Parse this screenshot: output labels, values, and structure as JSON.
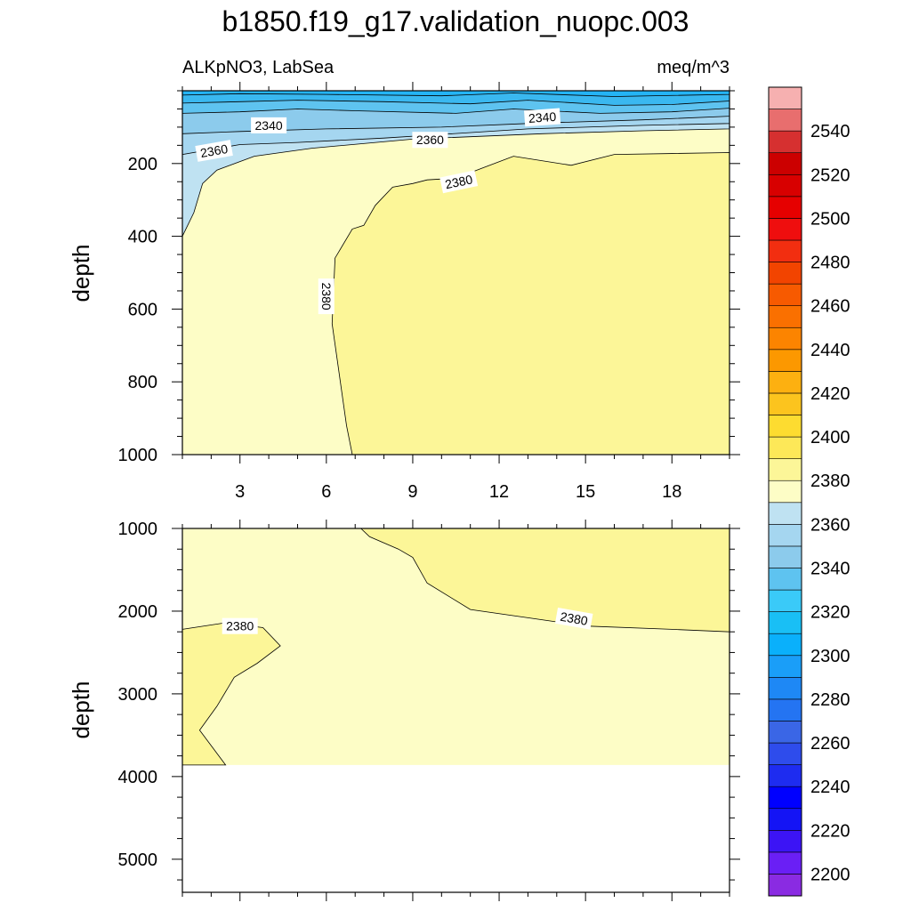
{
  "title": "b1850.f19_g17.validation_nuopc.003",
  "colors": {
    "background": "#ffffff",
    "contour_line": "#000000"
  },
  "chart_data": [
    {
      "type": "contour",
      "panel": "upper",
      "variable": "ALKpNO3, LabSea",
      "units": "meq/m^3",
      "xlabel": "",
      "ylabel": "depth",
      "xlim": [
        1,
        20
      ],
      "ylim": [
        1000,
        0
      ],
      "y_inverted": true,
      "x_ticks": [
        "3",
        "6",
        "9",
        "12",
        "15",
        "18"
      ],
      "y_ticks": [
        "200",
        "400",
        "600",
        "800",
        "1000"
      ],
      "grid": false,
      "regions": [
        {
          "level_min": 2370,
          "level_max": 2380,
          "color": "#fdfdc6",
          "outline": [
            [
              1,
              0
            ],
            [
              20,
              0
            ],
            [
              20,
              1000
            ],
            [
              1,
              1000
            ]
          ]
        },
        {
          "level_min": 2380,
          "level_max": 2390,
          "color": "#fcf698",
          "outline": [
            [
              20,
              170
            ],
            [
              16,
              175
            ],
            [
              14.5,
              205
            ],
            [
              12.5,
              180
            ],
            [
              11.5,
              210
            ],
            [
              10.5,
              240
            ],
            [
              9.5,
              245
            ],
            [
              9,
              255
            ],
            [
              8.3,
              265
            ],
            [
              7.7,
              315
            ],
            [
              7.3,
              370
            ],
            [
              6.9,
              380
            ],
            [
              6.3,
              460
            ],
            [
              6.2,
              640
            ],
            [
              6.7,
              920
            ],
            [
              6.9,
              1000
            ],
            [
              20,
              1000
            ]
          ]
        },
        {
          "level_min": 2360,
          "level_max": 2370,
          "color": "#bfe2f2",
          "outline": [
            [
              1,
              0
            ],
            [
              20,
              0
            ],
            [
              20,
              105
            ],
            [
              17,
              110
            ],
            [
              13.5,
              118
            ],
            [
              9,
              133
            ],
            [
              5.5,
              158
            ],
            [
              3.5,
              180
            ],
            [
              2.2,
              218
            ],
            [
              1.7,
              255
            ],
            [
              1.4,
              335
            ],
            [
              1,
              400
            ]
          ]
        },
        {
          "level_min": 2350,
          "level_max": 2360,
          "color": "#a5d6f0",
          "outline": [
            [
              1,
              0
            ],
            [
              20,
              0
            ],
            [
              20,
              90
            ],
            [
              17,
              95
            ],
            [
              13,
              105
            ],
            [
              10,
              120
            ],
            [
              8,
              130
            ],
            [
              5,
              142
            ],
            [
              3,
              148
            ],
            [
              1,
              175
            ]
          ]
        },
        {
          "level_min": 2340,
          "level_max": 2350,
          "color": "#8ccbec",
          "outline": [
            [
              1,
              0
            ],
            [
              20,
              0
            ],
            [
              20,
              70
            ],
            [
              17,
              80
            ],
            [
              13,
              90
            ],
            [
              10,
              100
            ],
            [
              6,
              105
            ],
            [
              3,
              112
            ],
            [
              1,
              118
            ]
          ]
        },
        {
          "level_min": 2330,
          "level_max": 2340,
          "color": "#5ec3f0",
          "outline": [
            [
              1,
              0
            ],
            [
              20,
              0
            ],
            [
              20,
              48
            ],
            [
              18,
              58
            ],
            [
              15.5,
              62
            ],
            [
              12.5,
              50
            ],
            [
              10.5,
              62
            ],
            [
              7,
              55
            ],
            [
              5,
              50
            ],
            [
              3,
              58
            ],
            [
              1,
              62
            ]
          ]
        },
        {
          "level_min": 2320,
          "level_max": 2330,
          "color": "#3ab8f0",
          "outline": [
            [
              1,
              0
            ],
            [
              20,
              0
            ],
            [
              20,
              28
            ],
            [
              18,
              38
            ],
            [
              16,
              40
            ],
            [
              13,
              26
            ],
            [
              11,
              36
            ],
            [
              8,
              30
            ],
            [
              5,
              26
            ],
            [
              3,
              30
            ],
            [
              1,
              34
            ]
          ]
        },
        {
          "level_min": 2310,
          "level_max": 2320,
          "color": "#24b4f5",
          "outline": [
            [
              1,
              0
            ],
            [
              20,
              0
            ],
            [
              20,
              10
            ],
            [
              16,
              16
            ],
            [
              12.5,
              6
            ],
            [
              10,
              14
            ],
            [
              6,
              10
            ],
            [
              3,
              8
            ],
            [
              1,
              12
            ]
          ]
        }
      ],
      "contour_labels": [
        {
          "text": "2340",
          "x": 4.0,
          "y": 95,
          "angle": 0
        },
        {
          "text": "2340",
          "x": 13.5,
          "y": 73,
          "angle": -4
        },
        {
          "text": "2360",
          "x": 9.6,
          "y": 135,
          "angle": 0
        },
        {
          "text": "2360",
          "x": 2.1,
          "y": 165,
          "angle": -10
        },
        {
          "text": "2380",
          "x": 10.6,
          "y": 250,
          "angle": -12
        },
        {
          "text": "2380",
          "x": 6.0,
          "y": 565,
          "angle": 90
        }
      ]
    },
    {
      "type": "contour",
      "panel": "lower",
      "variable": "",
      "units": "",
      "xlabel": "",
      "ylabel": "depth",
      "xlim": [
        1,
        20
      ],
      "ylim": [
        5400,
        1000
      ],
      "y_inverted": true,
      "x_ticks": [],
      "y_ticks": [
        "1000",
        "2000",
        "3000",
        "4000",
        "5000"
      ],
      "grid": false,
      "data_bottom": 3860,
      "regions": [
        {
          "level_min": 2370,
          "level_max": 2380,
          "color": "#fdfdc6",
          "outline": [
            [
              1,
              1000
            ],
            [
              20,
              1000
            ],
            [
              20,
              3860
            ],
            [
              1,
              3860
            ]
          ]
        },
        {
          "level_min": 2380,
          "level_max": 2390,
          "color": "#fcf698",
          "outline": [
            [
              7.2,
              1000
            ],
            [
              20,
              1000
            ],
            [
              20,
              2250
            ],
            [
              18,
              2220
            ],
            [
              15,
              2180
            ],
            [
              13,
              2080
            ],
            [
              11,
              1980
            ],
            [
              9.5,
              1660
            ],
            [
              9,
              1350
            ],
            [
              8.5,
              1250
            ],
            [
              7.5,
              1100
            ]
          ]
        },
        {
          "level_min": 2380,
          "level_max": 2390,
          "color": "#fcf698",
          "outline": [
            [
              1,
              2220
            ],
            [
              2.5,
              2140
            ],
            [
              3.8,
              2200
            ],
            [
              4.4,
              2420
            ],
            [
              3.6,
              2630
            ],
            [
              2.8,
              2800
            ],
            [
              2.2,
              3150
            ],
            [
              1.6,
              3440
            ],
            [
              2.5,
              3860
            ],
            [
              1,
              3860
            ]
          ]
        }
      ],
      "contour_labels": [
        {
          "text": "2380",
          "x": 3.0,
          "y": 2180,
          "angle": 0
        },
        {
          "text": "2380",
          "x": 14.6,
          "y": 2090,
          "angle": 10
        }
      ]
    }
  ],
  "colorbar": {
    "colors": [
      "#8a2be2",
      "#6a1ff5",
      "#3c14f5",
      "#1414f5",
      "#0000ff",
      "#1e2cf0",
      "#2e4cec",
      "#3a66e6",
      "#2474f2",
      "#1e88f5",
      "#1a9ef8",
      "#0ab0fb",
      "#19bff5",
      "#3acaf8",
      "#5ec3f0",
      "#8ccbec",
      "#a5d6f0",
      "#bfe2f2",
      "#fdfdc6",
      "#fcf698",
      "#fde858",
      "#fddc30",
      "#fcc41e",
      "#fdb010",
      "#fc9800",
      "#fc8400",
      "#fa7000",
      "#f75a00",
      "#f24400",
      "#f22e10",
      "#ef0e0e",
      "#e60000",
      "#d80000",
      "#cc0000",
      "#d63030",
      "#e86e6e",
      "#f6b0b0"
    ],
    "labels": [
      "2200",
      "2220",
      "2240",
      "2260",
      "2280",
      "2300",
      "2320",
      "2340",
      "2360",
      "2380",
      "2400",
      "2420",
      "2440",
      "2460",
      "2480",
      "2500",
      "2520",
      "2540"
    ]
  }
}
